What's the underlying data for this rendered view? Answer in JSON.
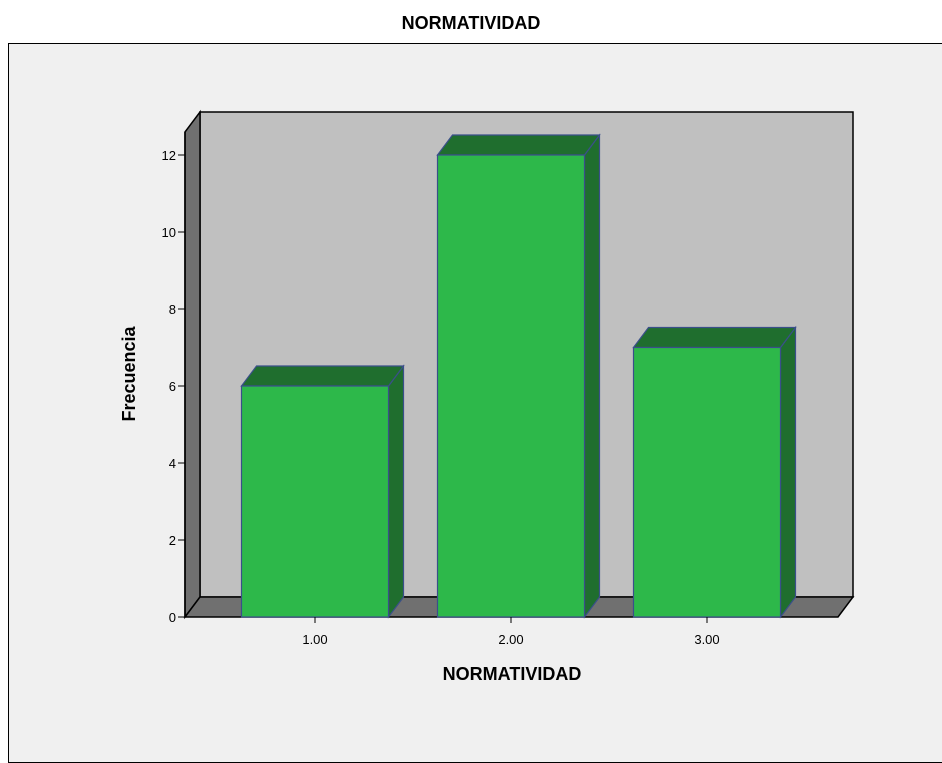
{
  "chart_data": {
    "type": "bar",
    "title": "NORMATIVIDAD",
    "xlabel": "NORMATIVIDAD",
    "ylabel": "Frecuencia",
    "categories": [
      "1.00",
      "2.00",
      "3.00"
    ],
    "values": [
      6,
      12,
      7
    ],
    "ylim": [
      0,
      12
    ],
    "yticks": [
      "0",
      "2",
      "4",
      "6",
      "8",
      "10",
      "12"
    ],
    "grid": false,
    "legend": "none",
    "three_d": true,
    "colors": {
      "bar_front": "#2db84a",
      "bar_top": "#1f6e2e",
      "bar_side": "#1f6e2e",
      "bar_outline": "#3a4f8a",
      "back_wall": "#c0c0c0",
      "side_wall": "#707070",
      "floor": "#707070",
      "frame_bg": "#f0f0f0"
    }
  }
}
